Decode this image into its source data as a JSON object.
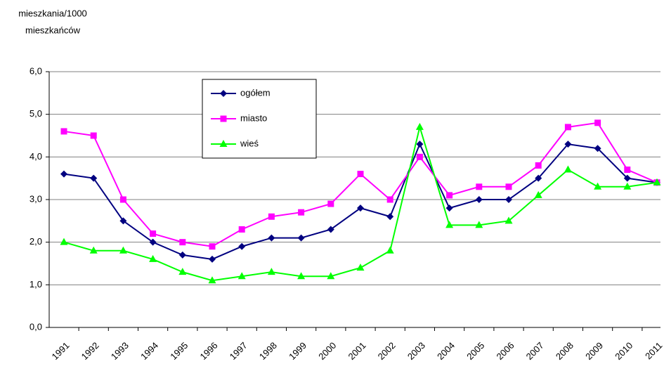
{
  "chart_data": {
    "type": "line",
    "ylabel": [
      "mieszkania/1000",
      "mieszkańców"
    ],
    "categories": [
      "1991",
      "1992",
      "1993",
      "1994",
      "1995",
      "1996",
      "1997",
      "1998",
      "1999",
      "2000",
      "2001",
      "2002",
      "2003",
      "2004",
      "2005",
      "2006",
      "2007",
      "2008",
      "2009",
      "2010",
      "2011"
    ],
    "series": [
      {
        "name": "ogółem",
        "color": "#000080",
        "marker": "diamond",
        "values": [
          3.6,
          3.5,
          2.5,
          2.0,
          1.7,
          1.6,
          1.9,
          2.1,
          2.1,
          2.3,
          2.8,
          2.6,
          4.3,
          2.8,
          3.0,
          3.0,
          3.5,
          4.3,
          4.2,
          3.5,
          3.4
        ]
      },
      {
        "name": "miasto",
        "color": "#ff00ff",
        "marker": "square",
        "values": [
          4.6,
          4.5,
          3.0,
          2.2,
          2.0,
          1.9,
          2.3,
          2.6,
          2.7,
          2.9,
          3.6,
          3.0,
          4.0,
          3.1,
          3.3,
          3.3,
          3.8,
          4.7,
          4.8,
          3.7,
          3.4
        ]
      },
      {
        "name": "wieś",
        "color": "#00ff00",
        "marker": "triangle",
        "values": [
          2.0,
          1.8,
          1.8,
          1.6,
          1.3,
          1.1,
          1.2,
          1.3,
          1.2,
          1.2,
          1.4,
          1.8,
          4.7,
          2.4,
          2.4,
          2.5,
          3.1,
          3.7,
          3.3,
          3.3,
          3.4
        ]
      }
    ],
    "ylim": [
      0,
      6
    ],
    "yticks": [
      {
        "value": 0,
        "label": "0,0"
      },
      {
        "value": 1,
        "label": "1,0"
      },
      {
        "value": 2,
        "label": "2,0"
      },
      {
        "value": 3,
        "label": "3,0"
      },
      {
        "value": 4,
        "label": "4,0"
      },
      {
        "value": 5,
        "label": "5,0"
      },
      {
        "value": 6,
        "label": "6,0"
      }
    ],
    "grid": true
  }
}
